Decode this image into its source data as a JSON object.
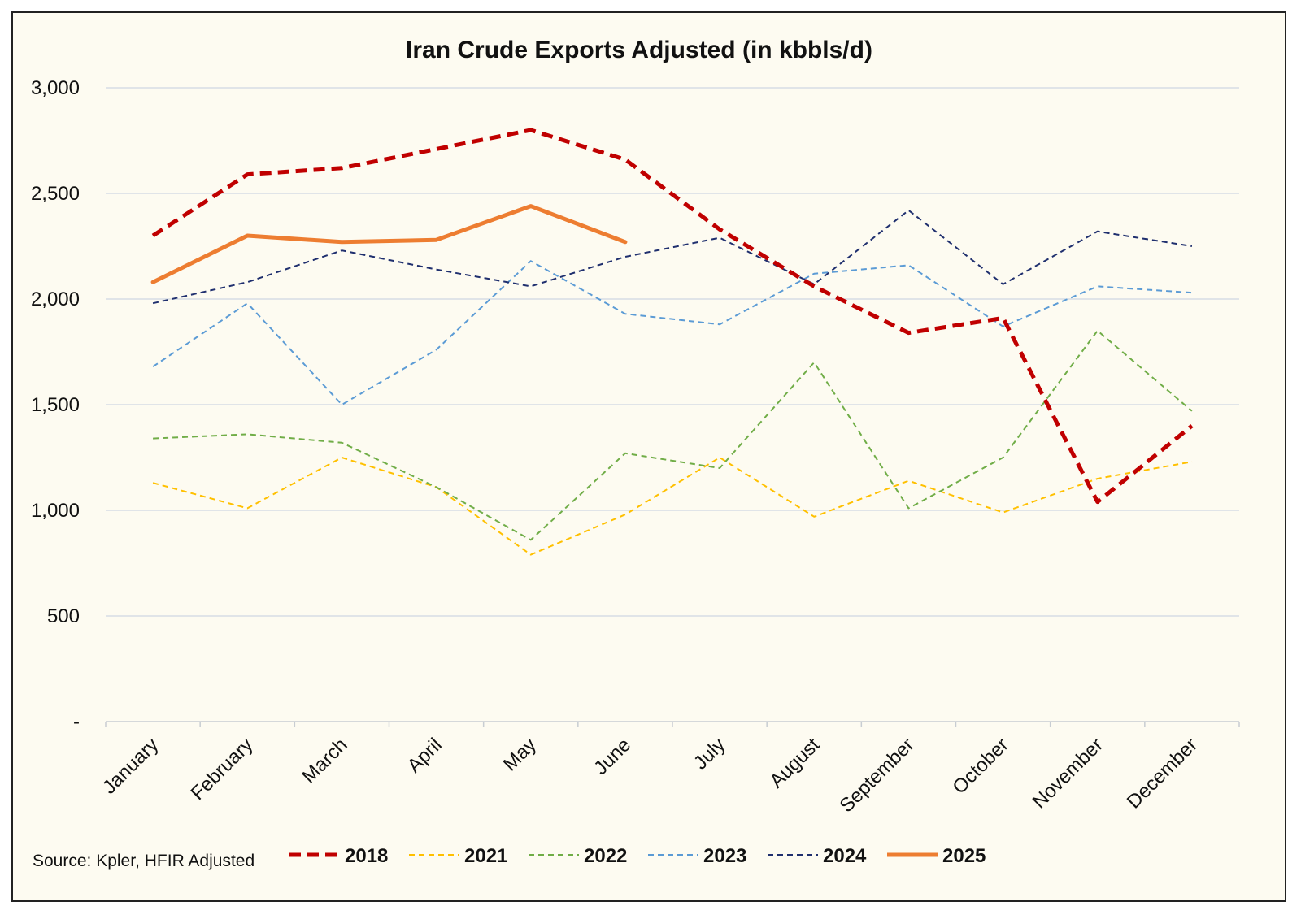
{
  "chart_data": {
    "type": "line",
    "title": "Iran Crude Exports Adjusted (in kbbls/d)",
    "xlabel": "",
    "ylabel": "",
    "categories": [
      "January",
      "February",
      "March",
      "April",
      "May",
      "June",
      "July",
      "August",
      "September",
      "October",
      "November",
      "December"
    ],
    "ylim": [
      0,
      3000
    ],
    "yticks": [
      0,
      500,
      1000,
      1500,
      2000,
      2500,
      3000
    ],
    "ytick_labels": [
      "-",
      "500",
      "1,000",
      "1,500",
      "2,000",
      "2,500",
      "3,000"
    ],
    "grid": "horizontal",
    "legend_position": "bottom",
    "source": "Source: Kpler, HFIR Adjusted",
    "series": [
      {
        "name": "2018",
        "color": "#c00000",
        "style": "dashed-thick",
        "values": [
          2300,
          2590,
          2620,
          2710,
          2800,
          2660,
          2330,
          2060,
          1840,
          1910,
          1040,
          1400
        ]
      },
      {
        "name": "2021",
        "color": "#ffc000",
        "style": "dashed",
        "values": [
          1130,
          1010,
          1250,
          1110,
          790,
          980,
          1250,
          970,
          1140,
          990,
          1150,
          1230
        ]
      },
      {
        "name": "2022",
        "color": "#70ad47",
        "style": "dashed",
        "values": [
          1340,
          1360,
          1320,
          1110,
          860,
          1270,
          1200,
          1700,
          1010,
          1250,
          1850,
          1470
        ]
      },
      {
        "name": "2023",
        "color": "#5b9bd5",
        "style": "dashed",
        "values": [
          1680,
          1980,
          1500,
          1760,
          2180,
          1930,
          1880,
          2120,
          2160,
          1870,
          2060,
          2030
        ]
      },
      {
        "name": "2024",
        "color": "#1f2f6e",
        "style": "dashed",
        "values": [
          1980,
          2080,
          2230,
          2140,
          2060,
          2200,
          2290,
          2070,
          2420,
          2070,
          2320,
          2250
        ]
      },
      {
        "name": "2025",
        "color": "#ed7d31",
        "style": "solid-thick",
        "values": [
          2080,
          2300,
          2270,
          2280,
          2440,
          2270,
          null,
          null,
          null,
          null,
          null,
          null
        ]
      }
    ]
  }
}
